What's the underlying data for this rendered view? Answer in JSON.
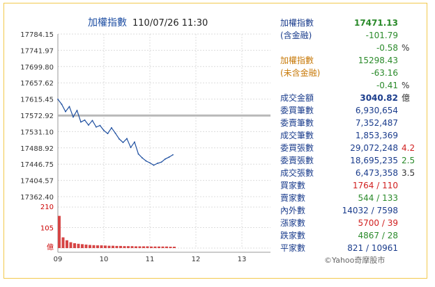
{
  "header": {
    "title": "加權指數",
    "datetime": "110/07/26 11:30"
  },
  "chart": {
    "y_ticks": [
      "17784.15",
      "17741.97",
      "17699.80",
      "17657.62",
      "17615.45",
      "17572.92",
      "17531.10",
      "17488.92",
      "17446.75",
      "17404.57",
      "17362.40"
    ],
    "x_ticks": [
      "09",
      "10",
      "11",
      "12",
      "13"
    ],
    "volume_ticks": [
      "210",
      "105",
      "億"
    ],
    "prev_close": 17572.92
  },
  "chart_data": {
    "type": "line",
    "title": "加權指數",
    "ylim": [
      17362.4,
      17784.15
    ],
    "reference_line": 17572.92,
    "x_time": [
      "09:00",
      "09:05",
      "09:10",
      "09:15",
      "09:20",
      "09:25",
      "09:30",
      "09:35",
      "09:40",
      "09:45",
      "09:50",
      "09:55",
      "10:00",
      "10:05",
      "10:10",
      "10:15",
      "10:20",
      "10:25",
      "10:30",
      "10:35",
      "10:40",
      "10:45",
      "10:50",
      "10:55",
      "11:00",
      "11:05",
      "11:10",
      "11:15",
      "11:20",
      "11:25",
      "11:30"
    ],
    "series": [
      {
        "values": [
          17615,
          17602,
          17583,
          17596,
          17569,
          17586,
          17556,
          17561,
          17548,
          17560,
          17543,
          17547,
          17534,
          17526,
          17541,
          17527,
          17512,
          17503,
          17513,
          17490,
          17504,
          17473,
          17463,
          17455,
          17450,
          17444,
          17449,
          17452,
          17460,
          17465,
          17471
        ]
      }
    ],
    "volume": {
      "ylim": [
        0,
        210
      ],
      "values": [
        165,
        55,
        40,
        30,
        25,
        22,
        20,
        18,
        16,
        15,
        14,
        14,
        13,
        12,
        12,
        11,
        11,
        10,
        10,
        10,
        9,
        9,
        9,
        9,
        8,
        8,
        8,
        8,
        8,
        7,
        7
      ]
    }
  },
  "stats": [
    {
      "label": "加權指數",
      "label_color": "blue",
      "value": "17471.13",
      "value_color": "green",
      "bold": true,
      "ext": ""
    },
    {
      "label": "(含金融)",
      "label_color": "blue",
      "value": "-101.79",
      "value_color": "green",
      "ext": ""
    },
    {
      "label": "",
      "label_color": "blue",
      "value": "-0.58",
      "value_color": "green",
      "ext": "%",
      "ext_color": "dark"
    },
    {
      "label": "加權指數",
      "label_color": "orange",
      "value": "15298.43",
      "value_color": "green",
      "ext": ""
    },
    {
      "label": "(未含金融)",
      "label_color": "orange",
      "value": "-63.16",
      "value_color": "green",
      "ext": ""
    },
    {
      "label": "",
      "label_color": "blue",
      "value": "-0.41",
      "value_color": "green",
      "ext": "%",
      "ext_color": "dark"
    },
    {
      "label": "成交金額",
      "label_color": "blue",
      "value": "3040.82",
      "value_color": "navy",
      "bold": true,
      "ext": "億",
      "ext_color": "dark"
    },
    {
      "label": "委買筆數",
      "label_color": "blue",
      "value": "6,930,654",
      "value_color": "navy",
      "ext": ""
    },
    {
      "label": "委賣筆數",
      "label_color": "blue",
      "value": "7,352,487",
      "value_color": "navy",
      "ext": ""
    },
    {
      "label": "成交筆數",
      "label_color": "blue",
      "value": "1,853,369",
      "value_color": "navy",
      "ext": ""
    },
    {
      "label": "委買張數",
      "label_color": "blue",
      "value": "29,072,248",
      "value_color": "navy",
      "ext": "4.2",
      "ext_color": "red"
    },
    {
      "label": "委賣張數",
      "label_color": "blue",
      "value": "18,695,235",
      "value_color": "navy",
      "ext": "2.5",
      "ext_color": "green"
    },
    {
      "label": "成交張數",
      "label_color": "blue",
      "value": "6,473,358",
      "value_color": "navy",
      "ext": "3.5",
      "ext_color": "dark"
    },
    {
      "label": "買家數",
      "label_color": "blue",
      "value": "1764 / 110",
      "value_color": "red",
      "ext": ""
    },
    {
      "label": "賣家數",
      "label_color": "blue",
      "value": "544 / 133",
      "value_color": "green",
      "ext": ""
    },
    {
      "label": "內外數",
      "label_color": "blue",
      "value": "14032 / 7598",
      "value_color": "navy",
      "ext": ""
    },
    {
      "label": "漲家數",
      "label_color": "blue",
      "value": "5700 / 39",
      "value_color": "red",
      "ext": ""
    },
    {
      "label": "跌家數",
      "label_color": "blue",
      "value": "4867 / 28",
      "value_color": "green",
      "ext": ""
    },
    {
      "label": "平家數",
      "label_color": "blue",
      "value": "821 / 10961",
      "value_color": "navy",
      "ext": ""
    }
  ],
  "footer": {
    "copyright": "©Yahoo奇摩股市"
  }
}
